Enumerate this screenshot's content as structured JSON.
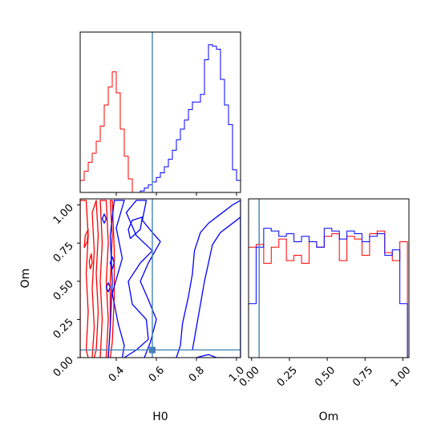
{
  "chart_data": [
    {
      "type": "histogram",
      "panel": "H0 marginal",
      "xlim": [
        0.22,
        1.02
      ],
      "bins_x": [
        0.22,
        0.24,
        0.26,
        0.28,
        0.3,
        0.32,
        0.34,
        0.36,
        0.38,
        0.4,
        0.42,
        0.44,
        0.46,
        0.48,
        0.5,
        0.52,
        0.54,
        0.56,
        0.58,
        0.6,
        0.62,
        0.64,
        0.66,
        0.68,
        0.7,
        0.72,
        0.74,
        0.76,
        0.78,
        0.8,
        0.82,
        0.84,
        0.86,
        0.88,
        0.9,
        0.92,
        0.94,
        0.96,
        0.98,
        1.0
      ],
      "series": [
        {
          "color": "#ff0000",
          "values": [
            0.08,
            0.14,
            0.2,
            0.26,
            0.34,
            0.44,
            0.58,
            0.7,
            0.8,
            0.66,
            0.42,
            0.24,
            0.09,
            0,
            0,
            0,
            0,
            0,
            0,
            0,
            0,
            0,
            0,
            0,
            0,
            0,
            0,
            0,
            0,
            0,
            0,
            0,
            0,
            0,
            0,
            0,
            0,
            0,
            0,
            0
          ]
        },
        {
          "color": "#0000ff",
          "values": [
            0,
            0,
            0,
            0,
            0,
            0,
            0,
            0,
            0,
            0,
            0,
            0,
            0,
            0,
            0,
            0.01,
            0.03,
            0.05,
            0.07,
            0.1,
            0.13,
            0.17,
            0.22,
            0.28,
            0.35,
            0.42,
            0.48,
            0.55,
            0.6,
            0.6,
            0.65,
            0.88,
            0.98,
            0.97,
            0.95,
            0.75,
            0.58,
            0.45,
            0.15,
            0.08
          ]
        }
      ],
      "truth_line": 0.58
    },
    {
      "type": "contour",
      "panel": "H0 vs Om",
      "xlabel": "H0",
      "ylabel": "Om",
      "xlim": [
        0.22,
        1.02
      ],
      "ylim": [
        0.0,
        1.04
      ],
      "xticks": [
        0.4,
        0.6,
        0.8,
        1.0
      ],
      "xtick_labels": [
        "0.4",
        "0.6",
        "0.8",
        "1.0"
      ],
      "yticks": [
        0.0,
        0.25,
        0.5,
        0.75,
        1.0
      ],
      "ytick_labels": [
        "0.00",
        "0.25",
        "0.50",
        "0.75",
        "1.00"
      ],
      "series": [
        {
          "color": "#ff0000",
          "contours": [
            [
              [
                0.22,
                0.0
              ],
              [
                0.22,
                1.03
              ],
              [
                0.25,
                1.03
              ],
              [
                0.26,
                0.8
              ],
              [
                0.25,
                0.55
              ],
              [
                0.26,
                0.3
              ],
              [
                0.25,
                0.05
              ],
              [
                0.26,
                0.0
              ]
            ],
            [
              [
                0.28,
                0.0
              ],
              [
                0.29,
                0.2
              ],
              [
                0.28,
                0.45
              ],
              [
                0.29,
                0.7
              ],
              [
                0.28,
                0.95
              ],
              [
                0.3,
                1.03
              ],
              [
                0.31,
                0.8
              ],
              [
                0.3,
                0.55
              ],
              [
                0.31,
                0.3
              ],
              [
                0.3,
                0.05
              ],
              [
                0.29,
                0.0
              ]
            ],
            [
              [
                0.32,
                0.0
              ],
              [
                0.33,
                0.25
              ],
              [
                0.32,
                0.5
              ],
              [
                0.33,
                0.75
              ],
              [
                0.32,
                1.03
              ],
              [
                0.35,
                1.03
              ],
              [
                0.36,
                0.75
              ],
              [
                0.35,
                0.5
              ],
              [
                0.36,
                0.25
              ],
              [
                0.35,
                0.0
              ]
            ],
            [
              [
                0.36,
                0.0
              ],
              [
                0.37,
                0.2
              ],
              [
                0.37,
                0.5
              ],
              [
                0.38,
                0.8
              ],
              [
                0.37,
                1.03
              ],
              [
                0.38,
                1.03
              ],
              [
                0.39,
                0.7
              ],
              [
                0.39,
                0.4
              ],
              [
                0.38,
                0.1
              ],
              [
                0.37,
                0.0
              ]
            ],
            [
              [
                0.24,
                0.72
              ],
              [
                0.255,
                0.76
              ],
              [
                0.26,
                0.84
              ],
              [
                0.245,
                0.8
              ],
              [
                0.24,
                0.72
              ]
            ],
            [
              [
                0.27,
                0.58
              ],
              [
                0.28,
                0.62
              ],
              [
                0.275,
                0.68
              ],
              [
                0.265,
                0.63
              ],
              [
                0.27,
                0.58
              ]
            ]
          ]
        },
        {
          "color": "#0000ff",
          "contours": [
            [
              [
                0.36,
                0.0
              ],
              [
                0.37,
                0.2
              ],
              [
                0.38,
                0.5
              ],
              [
                0.37,
                0.8
              ],
              [
                0.39,
                1.03
              ],
              [
                0.44,
                1.03
              ],
              [
                0.4,
                0.85
              ],
              [
                0.43,
                0.65
              ],
              [
                0.38,
                0.42
              ],
              [
                0.41,
                0.22
              ],
              [
                0.44,
                0.08
              ],
              [
                0.43,
                0.0
              ]
            ],
            [
              [
                0.44,
                0.0
              ],
              [
                0.5,
                0.05
              ],
              [
                0.56,
                0.12
              ],
              [
                0.55,
                0.25
              ],
              [
                0.48,
                0.35
              ],
              [
                0.46,
                0.5
              ],
              [
                0.52,
                0.62
              ],
              [
                0.58,
                0.7
              ],
              [
                0.5,
                0.8
              ],
              [
                0.45,
                0.95
              ],
              [
                0.5,
                1.03
              ],
              [
                0.55,
                1.03
              ],
              [
                0.53,
                0.9
              ],
              [
                0.58,
                0.82
              ],
              [
                0.62,
                0.76
              ],
              [
                0.56,
                0.62
              ],
              [
                0.52,
                0.5
              ],
              [
                0.56,
                0.38
              ],
              [
                0.6,
                0.25
              ],
              [
                0.57,
                0.1
              ],
              [
                0.54,
                0.0
              ]
            ],
            [
              [
                0.47,
                0.78
              ],
              [
                0.52,
                0.84
              ],
              [
                0.53,
                0.92
              ],
              [
                0.48,
                0.9
              ],
              [
                0.46,
                0.84
              ],
              [
                0.47,
                0.78
              ]
            ],
            [
              [
                0.38,
                0.58
              ],
              [
                0.39,
                0.62
              ],
              [
                0.38,
                0.66
              ],
              [
                0.37,
                0.62
              ],
              [
                0.38,
                0.58
              ]
            ],
            [
              [
                0.36,
                0.43
              ],
              [
                0.37,
                0.46
              ],
              [
                0.36,
                0.49
              ],
              [
                0.35,
                0.46
              ],
              [
                0.36,
                0.43
              ]
            ],
            [
              [
                0.34,
                0.88
              ],
              [
                0.35,
                0.91
              ],
              [
                0.34,
                0.94
              ],
              [
                0.33,
                0.91
              ],
              [
                0.34,
                0.88
              ]
            ],
            [
              [
                0.7,
                0.0
              ],
              [
                0.72,
                0.08
              ],
              [
                0.73,
                0.22
              ],
              [
                0.76,
                0.4
              ],
              [
                0.78,
                0.55
              ],
              [
                0.79,
                0.7
              ],
              [
                0.82,
                0.82
              ],
              [
                0.86,
                0.88
              ],
              [
                0.9,
                0.92
              ],
              [
                0.94,
                0.96
              ],
              [
                0.98,
                1.0
              ],
              [
                1.02,
                1.03
              ],
              [
                1.02,
                0.0
              ]
            ],
            [
              [
                0.78,
                0.05
              ],
              [
                0.8,
                0.2
              ],
              [
                0.82,
                0.35
              ],
              [
                0.84,
                0.5
              ],
              [
                0.86,
                0.62
              ],
              [
                0.88,
                0.74
              ],
              [
                0.92,
                0.82
              ],
              [
                0.96,
                0.86
              ],
              [
                1.0,
                0.9
              ],
              [
                1.02,
                0.92
              ],
              [
                1.02,
                0.0
              ],
              [
                0.9,
                0.0
              ],
              [
                0.86,
                0.02
              ],
              [
                0.8,
                0.0
              ]
            ]
          ]
        }
      ],
      "truth_point": [
        0.58,
        0.05
      ]
    },
    {
      "type": "histogram",
      "panel": "Om marginal",
      "xlabel": "Om",
      "xlim": [
        -0.02,
        1.04
      ],
      "xticks": [
        0.0,
        0.25,
        0.5,
        0.75,
        1.0
      ],
      "xtick_labels": [
        "0.00",
        "0.25",
        "0.50",
        "0.75",
        "1.00"
      ],
      "bins_x": [
        -0.02,
        0.03,
        0.08,
        0.13,
        0.18,
        0.23,
        0.28,
        0.33,
        0.38,
        0.43,
        0.48,
        0.53,
        0.58,
        0.63,
        0.68,
        0.73,
        0.78,
        0.83,
        0.88,
        0.93,
        0.98
      ],
      "series": [
        {
          "color": "#ff0000",
          "values": [
            0.82,
            0.84,
            0.7,
            0.82,
            0.88,
            0.72,
            0.76,
            0.7,
            0.86,
            0.82,
            0.9,
            0.92,
            0.72,
            0.9,
            0.88,
            0.76,
            0.92,
            0.94,
            0.78,
            0.72,
            0.86
          ]
        },
        {
          "color": "#0000ff",
          "values": [
            0.4,
            0.82,
            0.96,
            0.94,
            0.9,
            0.92,
            0.86,
            0.9,
            0.86,
            0.82,
            0.96,
            0.94,
            0.88,
            0.94,
            0.92,
            0.86,
            0.9,
            0.92,
            0.76,
            0.8,
            0.4
          ]
        }
      ],
      "truth_line": 0.05
    }
  ]
}
